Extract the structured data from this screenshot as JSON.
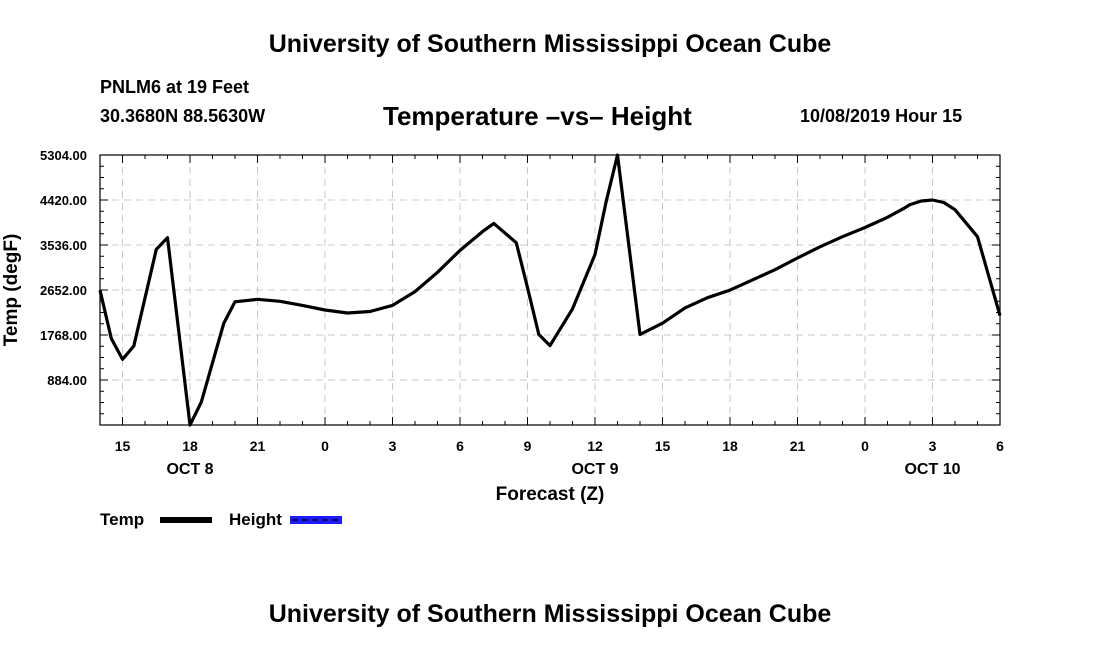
{
  "page": {
    "title_top": "University of Southern Mississippi Ocean Cube",
    "title_bottom": "University of Southern Mississippi Ocean Cube",
    "station": "PNLM6 at 19 Feet",
    "coords": "30.3680N 88.5630W",
    "date": "10/08/2019 Hour 15"
  },
  "colors": {
    "temp": "#000000",
    "height": "#1a1aff",
    "grid": "#c8c8c8"
  },
  "chart_data": {
    "type": "line",
    "title": "Temperature –vs– Height",
    "xlabel": "Forecast (Z)",
    "ylabel": "Temp (degF)",
    "xlim": [
      14,
      54
    ],
    "ylim": [
      0,
      5304
    ],
    "grid": true,
    "x_ticks": [
      15,
      18,
      21,
      24,
      27,
      30,
      33,
      36,
      39,
      42,
      45,
      48,
      51,
      54
    ],
    "x_tick_labels": [
      "15",
      "18",
      "21",
      "0",
      "3",
      "6",
      "9",
      "12",
      "15",
      "18",
      "21",
      "0",
      "3",
      "6"
    ],
    "day_labels": [
      {
        "x": 18,
        "label": "OCT 8"
      },
      {
        "x": 36,
        "label": "OCT 9"
      },
      {
        "x": 51,
        "label": "OCT 10"
      }
    ],
    "y_ticks": [
      884,
      1768,
      2652,
      3536,
      4420,
      5304
    ],
    "y_tick_labels": [
      "884.00",
      "1768.00",
      "2652.00",
      "3536.00",
      "4420.00",
      "5304.00"
    ],
    "legend": [
      {
        "name": "Temp",
        "style": "solid"
      },
      {
        "name": "Height",
        "style": "dashed"
      }
    ],
    "series": [
      {
        "name": "Temp",
        "x": [
          14,
          14.5,
          15,
          15.5,
          16.5,
          17,
          18,
          18.5,
          19.5,
          20,
          21,
          22,
          23,
          24,
          25,
          26,
          27,
          28,
          29,
          30,
          31,
          31.5,
          32.5,
          33,
          33.5,
          34,
          35,
          36,
          36.5,
          37,
          38,
          39,
          40,
          41,
          42,
          43,
          44,
          45,
          46,
          47,
          48,
          49,
          49.7,
          50,
          50.5,
          51,
          51.5,
          52,
          53,
          54
        ],
        "y": [
          2650,
          1700,
          1290,
          1550,
          3450,
          3680,
          0,
          450,
          2000,
          2420,
          2470,
          2430,
          2350,
          2260,
          2200,
          2230,
          2350,
          2620,
          3000,
          3430,
          3800,
          3960,
          3580,
          2700,
          1780,
          1560,
          2280,
          3350,
          4400,
          5304,
          1780,
          2000,
          2300,
          2500,
          2650,
          2850,
          3050,
          3280,
          3500,
          3700,
          3880,
          4080,
          4250,
          4330,
          4400,
          4420,
          4370,
          4230,
          3700,
          2150
        ]
      },
      {
        "name": "Height",
        "x": [],
        "y": []
      }
    ]
  }
}
